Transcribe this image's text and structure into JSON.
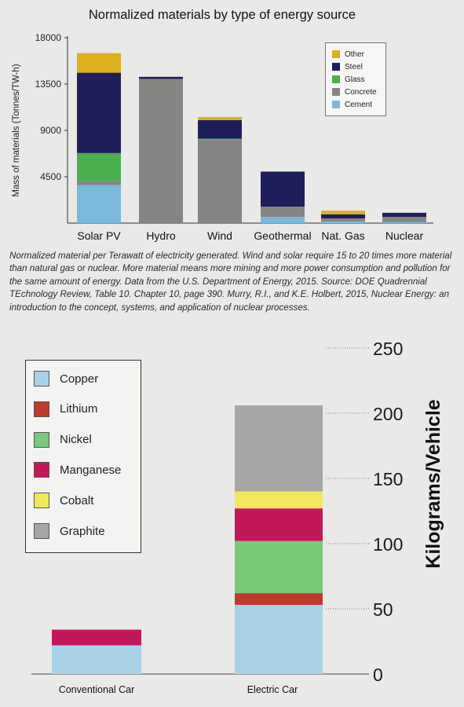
{
  "chart_data": [
    {
      "type": "bar",
      "stacked": true,
      "title": "Normalized materials by type of energy source",
      "ylabel": "Mass of materials (Tonnes/TW-h)",
      "xlabel": "",
      "ylim": [
        0,
        18000
      ],
      "yticks": [
        4500,
        9000,
        13500,
        18000
      ],
      "grid": false,
      "legend_position": "top-right",
      "categories": [
        "Solar PV",
        "Hydro",
        "Wind",
        "Geothermal",
        "Nat. Gas",
        "Nuclear"
      ],
      "series": [
        {
          "name": "Cement",
          "color": "#7ab9dc",
          "values": [
            3700,
            0,
            0,
            600,
            150,
            100
          ]
        },
        {
          "name": "Concrete",
          "color": "#858583",
          "values": [
            400,
            14000,
            8100,
            1000,
            300,
            500
          ]
        },
        {
          "name": "Glass",
          "color": "#4aaf4d",
          "values": [
            2700,
            0,
            100,
            0,
            0,
            0
          ]
        },
        {
          "name": "Steel",
          "color": "#1e1f5a",
          "values": [
            7800,
            200,
            1800,
            3400,
            400,
            400
          ]
        },
        {
          "name": "Other",
          "color": "#ddb020",
          "values": [
            1900,
            0,
            300,
            0,
            350,
            0
          ]
        }
      ],
      "caption": "Normalized material per Terawatt of electricity generated. Wind and solar require 15 to 20 times more material than natural gas or nuclear. More material means more mining and more power consumption and pollution for the same amount of energy. Data from the U.S. Department of Energy, 2015. Source: DOE Quadrennial TEchnology Review, Table 10. Chapter 10, page 390. Murry, R.I., and K.E. Holbert, 2015, Nuclear Energy: an introduction to the concept, systems, and application of nuclear processes."
    },
    {
      "type": "bar",
      "stacked": true,
      "title": "",
      "ylabel": "Kilograms/Vehicle",
      "xlabel": "",
      "ylim": [
        0,
        250
      ],
      "yticks": [
        0,
        50,
        100,
        150,
        200,
        250
      ],
      "grid": false,
      "legend_position": "left",
      "categories": [
        "Conventional Car",
        "Electric Car"
      ],
      "series": [
        {
          "name": "Copper",
          "color": "#a8d2ea",
          "values": [
            22,
            53
          ]
        },
        {
          "name": "Lithium",
          "color": "#c0392b",
          "values": [
            0,
            9
          ]
        },
        {
          "name": "Nickel",
          "color": "#79c97b",
          "values": [
            0,
            40
          ]
        },
        {
          "name": "Manganese",
          "color": "#c2185b",
          "values": [
            12,
            25
          ]
        },
        {
          "name": "Cobalt",
          "color": "#f2e85c",
          "values": [
            0,
            13
          ]
        },
        {
          "name": "Graphite",
          "color": "#a6a6a4",
          "values": [
            0,
            66
          ]
        }
      ]
    }
  ]
}
